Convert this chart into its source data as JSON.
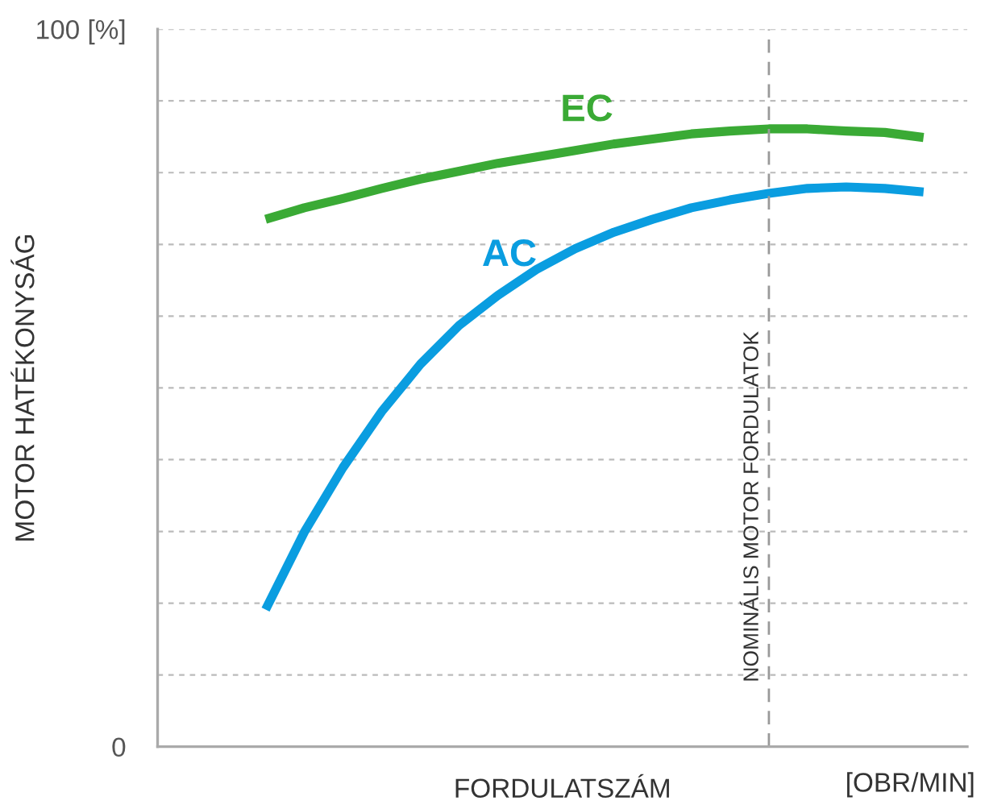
{
  "chart_data": {
    "type": "line",
    "xlabel": "FORDULATSZÁM",
    "ylabel": "MOTOR HATÉKONYSÁG",
    "annotations": [
      "[OBR/MIN]",
      "NOMINÁLIS MOTOR FORDULATOK"
    ],
    "categories": [
      null,
      null,
      null,
      null,
      null,
      null,
      null,
      null,
      null,
      null,
      null,
      null,
      null,
      null,
      null,
      null,
      null,
      null
    ],
    "series": [
      {
        "name": "EC",
        "color": "#3aaa35",
        "values": [
          73.5,
          75.1,
          76.4,
          77.8,
          79.1,
          80.2,
          81.3,
          82.2,
          83.1,
          84.0,
          84.7,
          85.4,
          85.8,
          86.1,
          86.1,
          85.8,
          85.6,
          84.9
        ]
      },
      {
        "name": "AC",
        "color": "#0a9de0",
        "values": [
          19.1,
          29.9,
          38.9,
          46.7,
          53.3,
          58.7,
          62.9,
          66.5,
          69.4,
          71.7,
          73.5,
          75.1,
          76.2,
          77.1,
          77.8,
          78.0,
          77.8,
          77.3
        ]
      }
    ],
    "ylim": [
      0,
      100
    ],
    "yticks": [
      0,
      {
        "value": 10,
        "label": null
      },
      {
        "value": 20,
        "label": null
      },
      {
        "value": 30,
        "label": null
      },
      {
        "value": 40,
        "label": null
      },
      {
        "value": 50,
        "label": null
      },
      {
        "value": 60,
        "label": null
      },
      {
        "value": 70,
        "label": null
      },
      {
        "value": 80,
        "label": null
      },
      {
        "value": 90,
        "label": null
      },
      {
        "value": 100,
        "label": "100 [%]"
      }
    ],
    "tick_labels": "y",
    "grid": "y",
    "marker": "none",
    "line_style": "solid",
    "legend": false
  }
}
